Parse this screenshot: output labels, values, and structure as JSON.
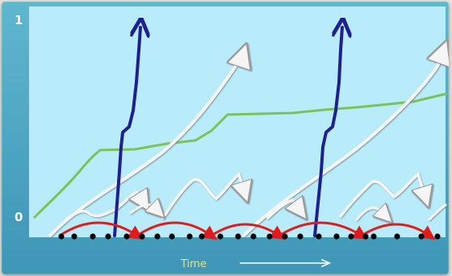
{
  "axes": {
    "y_max_label": "1",
    "y_min_label": "0",
    "x_label": "Time"
  },
  "colors": {
    "frame": "#4aa3c0",
    "plot_bg": "#b9ecfa",
    "purple_trace": "#1f1f8f",
    "white_trace": "#f5f5f5",
    "green_trace": "#7cc25a",
    "red_trace": "#e01b1b",
    "dots": "#000000",
    "time_arrow": "#ffffff"
  }
}
